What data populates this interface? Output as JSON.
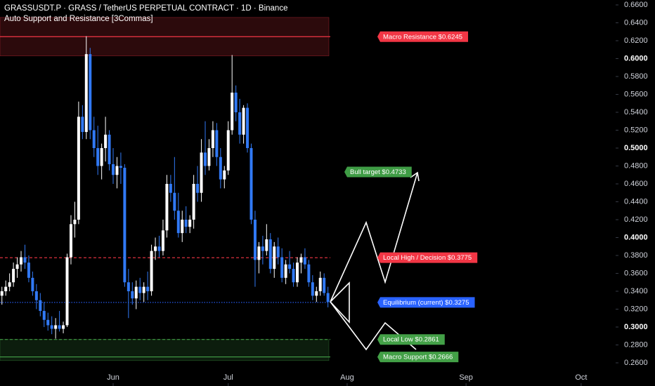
{
  "chart_data": {
    "type": "candlestick",
    "title": "GRASSUSDT.P · GRASS / TetherUS PERPETUAL CONTRACT · 1D · Binance",
    "subtitle": "Auto Support and Resistance [3Commas]",
    "up_color": "#ffffff",
    "down_color": "#3179f5",
    "xlim": [
      -0.5,
      160
    ],
    "xticks": [
      {
        "value": 29,
        "label": "Jun"
      },
      {
        "value": 59,
        "label": "Jul"
      },
      {
        "value": 90,
        "label": "Aug"
      },
      {
        "value": 121,
        "label": "Sep"
      },
      {
        "value": 151,
        "label": "Oct"
      }
    ],
    "ylim": [
      0.2341,
      0.6655
    ],
    "yticks": [
      {
        "value": 0.26,
        "label": "0.2600"
      },
      {
        "value": 0.28,
        "label": "0.2800"
      },
      {
        "value": 0.3,
        "label": "0.3000"
      },
      {
        "value": 0.32,
        "label": "0.3200"
      },
      {
        "value": 0.34,
        "label": "0.3400"
      },
      {
        "value": 0.36,
        "label": "0.3600"
      },
      {
        "value": 0.38,
        "label": "0.3800"
      },
      {
        "value": 0.4,
        "label": "0.4000"
      },
      {
        "value": 0.42,
        "label": "0.4200"
      },
      {
        "value": 0.44,
        "label": "0.4400"
      },
      {
        "value": 0.46,
        "label": "0.4600"
      },
      {
        "value": 0.48,
        "label": "0.4800"
      },
      {
        "value": 0.5,
        "label": "0.5000"
      },
      {
        "value": 0.52,
        "label": "0.5200"
      },
      {
        "value": 0.54,
        "label": "0.5400"
      },
      {
        "value": 0.56,
        "label": "0.5600"
      },
      {
        "value": 0.58,
        "label": "0.5800"
      },
      {
        "value": 0.6,
        "label": "0.6000"
      },
      {
        "value": 0.62,
        "label": "0.6200"
      },
      {
        "value": 0.64,
        "label": "0.6400"
      },
      {
        "value": 0.66,
        "label": "0.6600"
      }
    ],
    "x": [
      0,
      1,
      2,
      3,
      4,
      5,
      6,
      7,
      8,
      9,
      10,
      11,
      12,
      13,
      14,
      15,
      16,
      17,
      18,
      19,
      20,
      21,
      22,
      23,
      24,
      25,
      26,
      27,
      28,
      29,
      30,
      31,
      32,
      33,
      34,
      35,
      36,
      37,
      38,
      39,
      40,
      41,
      42,
      43,
      44,
      45,
      46,
      47,
      48,
      49,
      50,
      51,
      52,
      53,
      54,
      55,
      56,
      57,
      58,
      59,
      60,
      61,
      62,
      63,
      64,
      65,
      66,
      67,
      68,
      69,
      70,
      71,
      72,
      73,
      74,
      75,
      76,
      77,
      78,
      79,
      80,
      81,
      82,
      83,
      84,
      85
    ],
    "open": [
      0.335,
      0.34,
      0.345,
      0.35,
      0.365,
      0.37,
      0.378,
      0.372,
      0.355,
      0.34,
      0.33,
      0.318,
      0.308,
      0.302,
      0.298,
      0.302,
      0.298,
      0.302,
      0.378,
      0.415,
      0.42,
      0.535,
      0.518,
      0.605,
      0.52,
      0.5,
      0.48,
      0.5,
      0.515,
      0.482,
      0.47,
      0.48,
      0.478,
      0.35,
      0.34,
      0.332,
      0.345,
      0.338,
      0.345,
      0.34,
      0.385,
      0.39,
      0.385,
      0.408,
      0.46,
      0.45,
      0.43,
      0.405,
      0.42,
      0.412,
      0.42,
      0.46,
      0.45,
      0.495,
      0.48,
      0.5,
      0.52,
      0.49,
      0.465,
      0.475,
      0.52,
      0.562,
      0.54,
      0.515,
      0.545,
      0.5,
      0.42,
      0.375,
      0.39,
      0.385,
      0.398,
      0.365,
      0.39,
      0.378,
      0.355,
      0.37,
      0.365,
      0.35,
      0.372,
      0.378,
      0.37,
      0.35,
      0.335,
      0.34,
      0.355,
      0.338
    ],
    "high": [
      0.345,
      0.352,
      0.36,
      0.372,
      0.378,
      0.385,
      0.392,
      0.38,
      0.362,
      0.348,
      0.338,
      0.328,
      0.316,
      0.312,
      0.31,
      0.318,
      0.306,
      0.382,
      0.425,
      0.44,
      0.552,
      0.548,
      0.625,
      0.612,
      0.535,
      0.525,
      0.505,
      0.535,
      0.52,
      0.5,
      0.49,
      0.495,
      0.482,
      0.365,
      0.35,
      0.352,
      0.355,
      0.35,
      0.362,
      0.392,
      0.4,
      0.402,
      0.42,
      0.47,
      0.47,
      0.49,
      0.45,
      0.43,
      0.435,
      0.425,
      0.47,
      0.48,
      0.51,
      0.53,
      0.51,
      0.53,
      0.528,
      0.5,
      0.48,
      0.53,
      0.604,
      0.57,
      0.555,
      0.548,
      0.55,
      0.505,
      0.43,
      0.395,
      0.402,
      0.415,
      0.405,
      0.395,
      0.4,
      0.388,
      0.375,
      0.385,
      0.372,
      0.378,
      0.382,
      0.388,
      0.375,
      0.358,
      0.345,
      0.362,
      0.36,
      0.345
    ],
    "low": [
      0.325,
      0.335,
      0.34,
      0.345,
      0.355,
      0.362,
      0.365,
      0.35,
      0.335,
      0.32,
      0.312,
      0.3,
      0.296,
      0.292,
      0.287,
      0.295,
      0.293,
      0.3,
      0.37,
      0.4,
      0.415,
      0.51,
      0.51,
      0.51,
      0.49,
      0.47,
      0.465,
      0.485,
      0.475,
      0.46,
      0.455,
      0.46,
      0.345,
      0.31,
      0.325,
      0.32,
      0.33,
      0.328,
      0.33,
      0.335,
      0.375,
      0.378,
      0.38,
      0.4,
      0.44,
      0.42,
      0.4,
      0.395,
      0.405,
      0.405,
      0.41,
      0.44,
      0.44,
      0.47,
      0.475,
      0.49,
      0.48,
      0.455,
      0.455,
      0.47,
      0.515,
      0.53,
      0.505,
      0.505,
      0.495,
      0.415,
      0.345,
      0.36,
      0.37,
      0.38,
      0.36,
      0.355,
      0.37,
      0.35,
      0.348,
      0.36,
      0.345,
      0.345,
      0.36,
      0.365,
      0.345,
      0.33,
      0.328,
      0.335,
      0.335,
      0.322
    ],
    "close": [
      0.34,
      0.345,
      0.35,
      0.365,
      0.37,
      0.378,
      0.372,
      0.355,
      0.34,
      0.33,
      0.318,
      0.308,
      0.302,
      0.298,
      0.302,
      0.298,
      0.302,
      0.378,
      0.415,
      0.42,
      0.535,
      0.518,
      0.605,
      0.52,
      0.5,
      0.48,
      0.5,
      0.515,
      0.482,
      0.47,
      0.48,
      0.478,
      0.35,
      0.34,
      0.332,
      0.345,
      0.338,
      0.345,
      0.34,
      0.385,
      0.39,
      0.385,
      0.408,
      0.46,
      0.45,
      0.43,
      0.405,
      0.42,
      0.412,
      0.42,
      0.46,
      0.45,
      0.495,
      0.48,
      0.5,
      0.52,
      0.49,
      0.465,
      0.475,
      0.52,
      0.562,
      0.54,
      0.515,
      0.545,
      0.5,
      0.42,
      0.375,
      0.39,
      0.385,
      0.398,
      0.365,
      0.39,
      0.378,
      0.355,
      0.37,
      0.365,
      0.35,
      0.372,
      0.378,
      0.37,
      0.35,
      0.335,
      0.34,
      0.355,
      0.338,
      0.328
    ],
    "zones": [
      {
        "from": 0.603,
        "to": 0.646,
        "color": "#f23645"
      },
      {
        "from": 0.2625,
        "to": 0.2861,
        "color": "#43a047"
      }
    ],
    "levels": [
      {
        "label": "Macro Resistance $0.6245",
        "value": 0.6245,
        "color": "#f23645",
        "line": "solid"
      },
      {
        "label": "Bull target $0.4733",
        "value": 0.4733,
        "color": "#3f9c45",
        "line": "none"
      },
      {
        "label": "Local High / Decision $0.3775",
        "value": 0.3775,
        "color": "#f23645",
        "line": "dashed"
      },
      {
        "label": "Equilibrium (current) $0.3275",
        "value": 0.3275,
        "color": "#2962ff",
        "line": "dotted"
      },
      {
        "label": "Local Low $0.2861",
        "value": 0.2861,
        "color": "#43a047",
        "line": "dashed"
      },
      {
        "label": "Macro Support $0.2666",
        "value": 0.2666,
        "color": "#43a047",
        "line": "solid"
      }
    ]
  }
}
